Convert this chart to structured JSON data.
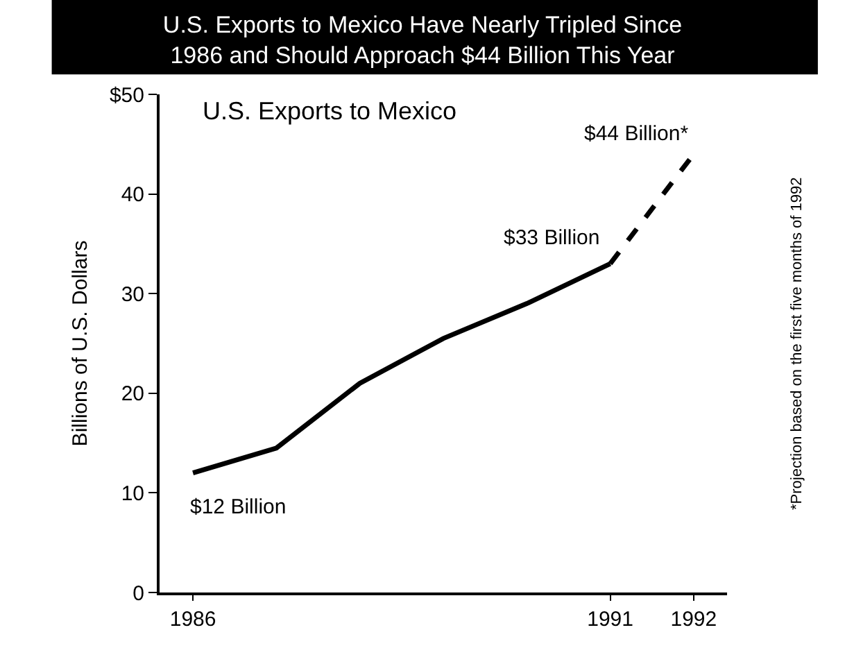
{
  "chart_data": {
    "type": "line",
    "title": "U.S. Exports to Mexico Have Nearly Tripled Since\n1986 and Should Approach $44 Billion This Year",
    "subtitle": "U.S. Exports to Mexico",
    "ylabel": "Billions of U.S. Dollars",
    "x": [
      1986,
      1987,
      1988,
      1989,
      1990,
      1991
    ],
    "series": [
      {
        "color": "#000000",
        "line_style": "solid",
        "values": [
          12,
          14.5,
          21,
          25.5,
          29,
          33
        ]
      },
      {
        "color": "#000000",
        "line_style": "dashed",
        "x": [
          1991,
          1992
        ],
        "values": [
          33,
          44
        ]
      }
    ],
    "xlim": [
      1985.6,
      1992.4
    ],
    "xticks": [
      1986,
      1991,
      1992
    ],
    "ylim": [
      0,
      50
    ],
    "yticks": [
      0,
      10,
      20,
      30,
      40,
      {
        "value": 50,
        "label": "$50"
      }
    ],
    "annotations": [
      {
        "text": "$12 Billion",
        "x": 1986,
        "y": 12
      },
      {
        "text": "$33 Billion",
        "x": 1991,
        "y": 33
      },
      {
        "text": "$44 Billion*",
        "x": 1992,
        "y": 44
      },
      "*Projection based on the first five months of 1992"
    ]
  }
}
